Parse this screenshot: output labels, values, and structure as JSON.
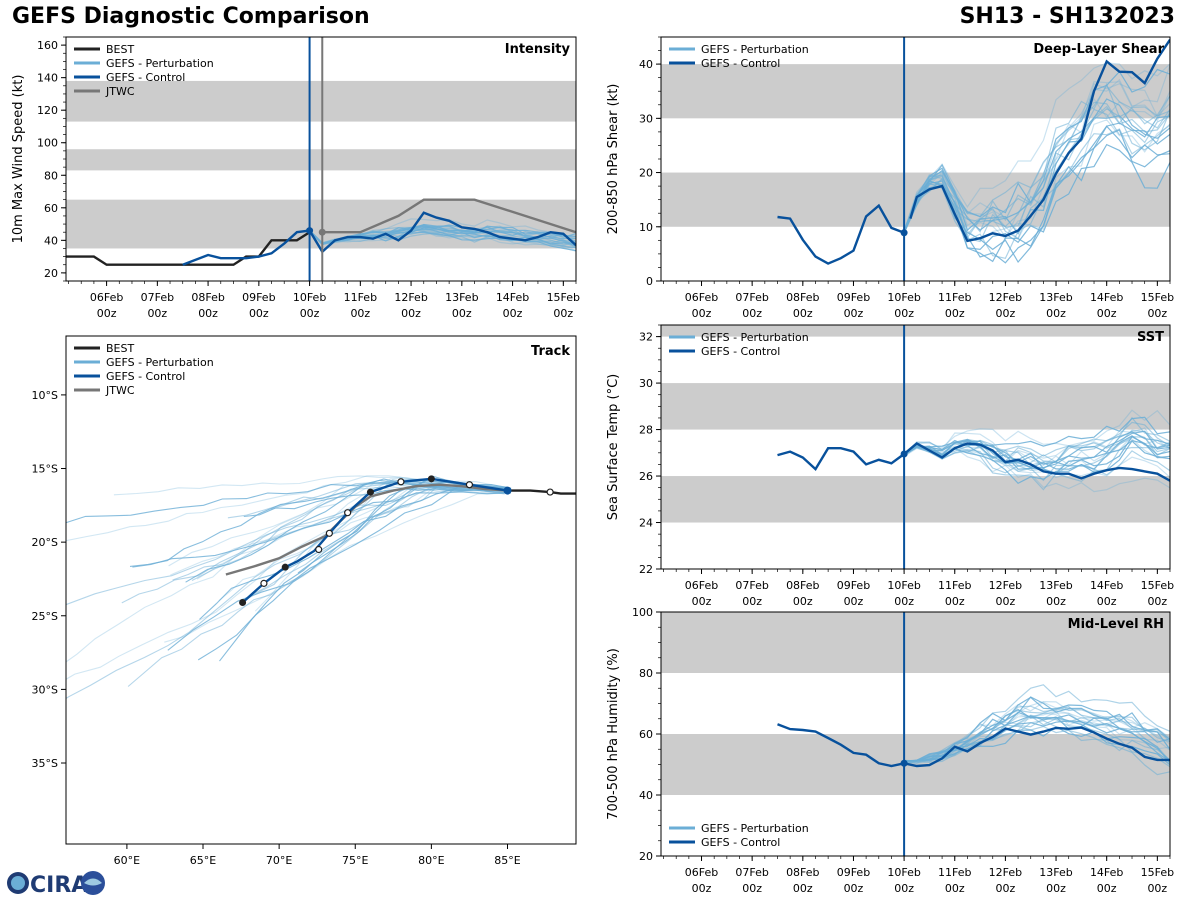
{
  "header": {
    "title_left": "GEFS Diagnostic Comparison",
    "title_right": "SH13 - SH132023"
  },
  "logo": {
    "text": "CIRA"
  },
  "colors": {
    "best": "#222222",
    "perturbation": "#6baed6",
    "control": "#08519c",
    "jtwc": "#777777",
    "band": "#cccccc",
    "vline": "#08519c",
    "vline2": "#777777"
  },
  "time_ticks": [
    {
      "t": 0,
      "l1": "06Feb",
      "l2": "00z"
    },
    {
      "t": 1,
      "l1": "07Feb",
      "l2": "00z"
    },
    {
      "t": 2,
      "l1": "08Feb",
      "l2": "00z"
    },
    {
      "t": 3,
      "l1": "09Feb",
      "l2": "00z"
    },
    {
      "t": 4,
      "l1": "10Feb",
      "l2": "00z"
    },
    {
      "t": 5,
      "l1": "11Feb",
      "l2": "00z"
    },
    {
      "t": 6,
      "l1": "12Feb",
      "l2": "00z"
    },
    {
      "t": 7,
      "l1": "13Feb",
      "l2": "00z"
    },
    {
      "t": 8,
      "l1": "14Feb",
      "l2": "00z"
    },
    {
      "t": 9,
      "l1": "15Feb",
      "l2": "00z"
    }
  ],
  "chart_data": [
    {
      "id": "intensity",
      "type": "line",
      "title": "Intensity",
      "ylabel": "10m Max Wind Speed (kt)",
      "xlim": [
        -0.8,
        9.25
      ],
      "ylim": [
        15,
        165
      ],
      "yticks": [
        20,
        40,
        60,
        80,
        100,
        120,
        140,
        160
      ],
      "bands": [
        [
          35,
          65
        ],
        [
          83,
          96
        ],
        [
          113,
          138
        ]
      ],
      "analysis_time": 4.0,
      "jtwc_time": 4.25,
      "legend": [
        "BEST",
        "GEFS - Perturbation",
        "GEFS - Control",
        "JTWC"
      ],
      "series": [
        {
          "name": "BEST",
          "x": [
            -0.8,
            -0.25,
            0,
            0.5,
            1,
            1.5,
            2,
            2.5,
            2.75,
            3,
            3.25,
            3.5,
            3.75,
            4
          ],
          "y": [
            30,
            30,
            25,
            25,
            25,
            25,
            25,
            25,
            30,
            30,
            40,
            40,
            40,
            45
          ]
        },
        {
          "name": "JTWC",
          "x": [
            4.25,
            5,
            5.75,
            6.25,
            7,
            7.25,
            9.25
          ],
          "y": [
            45,
            45,
            55,
            65,
            65,
            65,
            45
          ]
        },
        {
          "name": "GEFS - Control",
          "x": [
            1.5,
            2,
            2.25,
            2.5,
            2.75,
            3,
            3.25,
            3.5,
            3.75,
            4,
            4.25,
            4.5,
            4.75,
            5,
            5.25,
            5.5,
            5.75,
            6,
            6.25,
            6.5,
            6.75,
            7,
            7.25,
            7.5,
            7.75,
            8,
            8.25,
            8.5,
            8.75,
            9,
            9.25
          ],
          "y": [
            25,
            31,
            29,
            29,
            29,
            30,
            32,
            38,
            45,
            46,
            33,
            40,
            42,
            42,
            41,
            44,
            40,
            46,
            57,
            54,
            52,
            48,
            47,
            45,
            42,
            41,
            40,
            42,
            45,
            44,
            37
          ]
        }
      ],
      "perturbation": {
        "x0": 4,
        "dt": 0.25,
        "base": [
          46,
          38,
          40,
          41,
          42,
          43,
          43,
          44,
          46,
          47,
          46,
          45,
          44,
          43,
          44,
          43,
          42,
          41,
          40,
          39,
          38,
          37
        ],
        "spread": 6
      },
      "legend_pos": "top-left"
    },
    {
      "id": "shear",
      "type": "line",
      "title": "Deep-Layer Shear",
      "ylabel": "200-850 hPa Shear (kt)",
      "xlim": [
        -0.8,
        9.25
      ],
      "ylim": [
        0,
        45
      ],
      "yticks": [
        0,
        10,
        20,
        30,
        40
      ],
      "bands": [
        [
          10,
          20
        ],
        [
          30,
          40
        ]
      ],
      "analysis_time": 4.0,
      "legend": [
        "GEFS - Perturbation",
        "GEFS - Control"
      ],
      "series": [
        {
          "name": "GEFS - Control",
          "x": [
            1.5,
            1.75,
            2,
            2.25,
            2.5,
            2.75,
            3,
            3.25,
            3.5,
            3.75,
            4
          ],
          "y": [
            11.8,
            11.5,
            7.6,
            4.5,
            3.2,
            4.2,
            5.6,
            11.9,
            13.9,
            9.8,
            8.9
          ]
        },
        {
          "name": "GEFS - Control",
          "x": [
            4.125,
            4.25,
            4.5,
            4.75,
            5,
            5.25,
            5.5,
            5.75,
            6,
            6.25,
            6.5,
            6.75,
            7,
            7.25,
            7.5,
            7.75,
            8,
            8.25,
            8.5,
            8.75,
            9,
            9.25
          ],
          "y": [
            11.5,
            15.5,
            16.9,
            17.5,
            12.3,
            7.4,
            7.9,
            8.8,
            8.3,
            9.3,
            12,
            15,
            19.8,
            23.6,
            26.2,
            35,
            40.5,
            38.6,
            38.5,
            36.5,
            41,
            44.5
          ]
        }
      ],
      "perturbation": {
        "x0": 4,
        "dt": 0.25,
        "base": [
          9,
          15,
          18,
          19,
          14,
          9,
          9,
          10,
          10,
          11,
          13,
          16,
          21,
          24,
          27,
          30,
          32,
          30,
          28,
          27,
          28,
          30
        ],
        "spread": 10
      },
      "legend_pos": "top-left"
    },
    {
      "id": "sst",
      "type": "line",
      "title": "SST",
      "ylabel": "Sea Surface Temp (°C)",
      "xlim": [
        -0.8,
        9.25
      ],
      "ylim": [
        22,
        32.5
      ],
      "yticks": [
        22,
        24,
        26,
        28,
        30,
        32
      ],
      "bands": [
        [
          24,
          26
        ],
        [
          28,
          30
        ],
        [
          32,
          33
        ]
      ],
      "analysis_time": 4.0,
      "legend": [
        "GEFS - Perturbation",
        "GEFS - Control"
      ],
      "series": [
        {
          "name": "GEFS - Control",
          "x": [
            1.5,
            1.75,
            2,
            2.25,
            2.5,
            2.75,
            3,
            3.25,
            3.5,
            3.75,
            4,
            4.25,
            4.5,
            4.75,
            5,
            5.25,
            5.5,
            5.75,
            6,
            6.25,
            6.5,
            6.75,
            7,
            7.25,
            7.5,
            7.75,
            8,
            8.25,
            8.5,
            8.75,
            9,
            9.25
          ],
          "y": [
            26.9,
            27.05,
            26.8,
            26.3,
            27.2,
            27.2,
            27.05,
            26.5,
            26.7,
            26.55,
            26.95,
            27.4,
            27.1,
            26.8,
            27.2,
            27.4,
            27.35,
            27.1,
            26.6,
            26.7,
            26.5,
            26.2,
            26.1,
            26.1,
            25.9,
            26.1,
            26.25,
            26.35,
            26.3,
            26.2,
            26.1,
            25.8
          ]
        }
      ],
      "perturbation": {
        "x0": 4,
        "dt": 0.25,
        "base": [
          26.9,
          27.3,
          27.2,
          27.0,
          27.3,
          27.4,
          27.3,
          27.0,
          26.8,
          26.7,
          26.6,
          26.5,
          26.6,
          26.7,
          26.7,
          26.8,
          27.0,
          27.3,
          27.8,
          27.5,
          27.3,
          27.1
        ],
        "spread": 1.2
      },
      "legend_pos": "top-left"
    },
    {
      "id": "rh",
      "type": "line",
      "title": "Mid-Level RH",
      "ylabel": "700-500 hPa Humidity (%)",
      "xlim": [
        -0.8,
        9.25
      ],
      "ylim": [
        20,
        100
      ],
      "yticks": [
        20,
        40,
        60,
        80,
        100
      ],
      "bands": [
        [
          40,
          60
        ],
        [
          80,
          100
        ]
      ],
      "analysis_time": 4.0,
      "legend": [
        "GEFS - Perturbation",
        "GEFS - Control"
      ],
      "series": [
        {
          "name": "GEFS - Control",
          "x": [
            1.5,
            1.75,
            2,
            2.25,
            2.5,
            2.75,
            3,
            3.25,
            3.5,
            3.75,
            4,
            4.25,
            4.5,
            4.75,
            5,
            5.25,
            5.5,
            5.75,
            6,
            6.25,
            6.5,
            6.75,
            7,
            7.25,
            7.5,
            7.75,
            8,
            8.25,
            8.5,
            8.75,
            9,
            9.25
          ],
          "y": [
            63.2,
            61.6,
            61.3,
            60.8,
            58.7,
            56.5,
            53.8,
            53.2,
            50.4,
            49.5,
            50.4,
            49.5,
            49.8,
            52,
            55.8,
            54.3,
            57,
            59,
            61.8,
            60.8,
            59.8,
            60.8,
            62,
            61.7,
            62.1,
            60.5,
            58.5,
            56.8,
            55.5,
            52.5,
            51.5,
            51.5
          ]
        }
      ],
      "perturbation": {
        "x0": 4,
        "dt": 0.25,
        "base": [
          51,
          51,
          52,
          53,
          55,
          57,
          59,
          61,
          63,
          65,
          66,
          66,
          66,
          65,
          64,
          63,
          62,
          61,
          60,
          58,
          56,
          54
        ],
        "spread": 8
      },
      "legend_pos": "bottom-left"
    },
    {
      "id": "track",
      "type": "line",
      "title": "Track",
      "xlim": [
        56,
        89.5
      ],
      "ylim": [
        -40.5,
        -6
      ],
      "xticks": [
        {
          "v": 60,
          "l": "60°E"
        },
        {
          "v": 65,
          "l": "65°E"
        },
        {
          "v": 70,
          "l": "70°E"
        },
        {
          "v": 75,
          "l": "75°E"
        },
        {
          "v": 80,
          "l": "80°E"
        },
        {
          "v": 85,
          "l": "85°E"
        }
      ],
      "yticks": [
        {
          "v": -10,
          "l": "10°S"
        },
        {
          "v": -15,
          "l": "15°S"
        },
        {
          "v": -20,
          "l": "20°S"
        },
        {
          "v": -25,
          "l": "25°S"
        },
        {
          "v": -30,
          "l": "30°S"
        },
        {
          "v": -35,
          "l": "35°S"
        }
      ],
      "legend": [
        "BEST",
        "GEFS - Perturbation",
        "GEFS - Control",
        "JTWC"
      ],
      "series": [
        {
          "name": "BEST",
          "lon": [
            89.5,
            88.5,
            87.8,
            86.5,
            85.0
          ],
          "lat": [
            -16.7,
            -16.7,
            -16.6,
            -16.5,
            -16.5
          ]
        },
        {
          "name": "JTWC",
          "lon": [
            85.0,
            83.5,
            82.0,
            80.5,
            79.0,
            77.5,
            76.0,
            75.0,
            74.0,
            73.0,
            71.5,
            70.0,
            68.5,
            66.5
          ],
          "lat": [
            -16.5,
            -16.4,
            -16.2,
            -16.1,
            -16.2,
            -16.5,
            -16.9,
            -17.6,
            -18.6,
            -19.6,
            -20.3,
            -21.1,
            -21.6,
            -22.2
          ]
        },
        {
          "name": "GEFS - Control",
          "lon": [
            85.0,
            82.5,
            80.0,
            78.0,
            76.0,
            74.5,
            73.3,
            72.3,
            71.2,
            70.4,
            69.0,
            67.6
          ],
          "lat": [
            -16.5,
            -16.1,
            -15.7,
            -15.9,
            -16.6,
            -18.0,
            -19.4,
            -20.6,
            -21.3,
            -21.7,
            -22.8,
            -24.1
          ]
        }
      ],
      "markers_filled": [
        [
          80.0,
          -15.7
        ],
        [
          76.0,
          -16.6
        ],
        [
          70.4,
          -21.7
        ],
        [
          67.6,
          -24.1
        ]
      ],
      "markers_open": [
        [
          87.8,
          -16.6
        ],
        [
          82.5,
          -16.1
        ],
        [
          78.0,
          -15.9
        ],
        [
          74.5,
          -18.0
        ],
        [
          73.3,
          -19.4
        ],
        [
          72.6,
          -20.5
        ],
        [
          69.0,
          -22.8
        ]
      ],
      "legend_pos": "top-left"
    }
  ]
}
